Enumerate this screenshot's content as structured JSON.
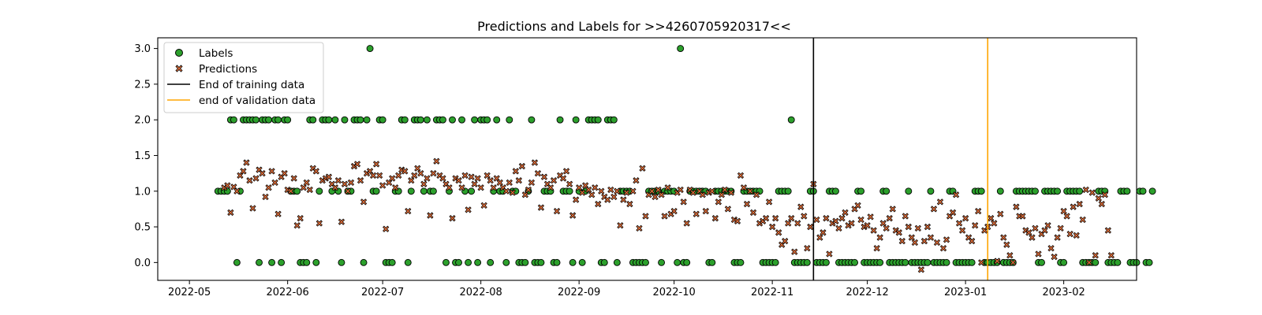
{
  "chart_data": {
    "type": "scatter",
    "title": "Predictions and Labels for >>4260705920317<<",
    "xlabel": "",
    "ylabel": "",
    "x_axis": {
      "type": "date",
      "range": [
        "2022-04-21",
        "2023-02-24"
      ],
      "ticks": [
        "2022-05-01",
        "2022-06-01",
        "2022-07-01",
        "2022-08-01",
        "2022-09-01",
        "2022-10-01",
        "2022-11-01",
        "2022-12-01",
        "2023-01-01",
        "2023-02-01"
      ],
      "tick_labels": [
        "2022-05",
        "2022-06",
        "2022-07",
        "2022-08",
        "2022-09",
        "2022-10",
        "2022-11",
        "2022-12",
        "2023-01",
        "2023-02"
      ]
    },
    "y_axis": {
      "range": [
        -0.25,
        3.15
      ],
      "ticks": [
        0.0,
        0.5,
        1.0,
        1.5,
        2.0,
        2.5,
        3.0
      ],
      "tick_labels": [
        "0.0",
        "0.5",
        "1.0",
        "1.5",
        "2.0",
        "2.5",
        "3.0"
      ]
    },
    "grid": false,
    "legend": {
      "placement": "top-left",
      "entries": [
        "Labels",
        "Predictions",
        "End of training data",
        "end of validation data"
      ]
    },
    "colors": {
      "labels": "#2ca02c",
      "predictions": "#e6703a",
      "training_line": "#000000",
      "validation_line": "#ffa500"
    },
    "vertical_lines": [
      {
        "name": "End of training data",
        "x": "2022-11-14",
        "color": "#000000"
      },
      {
        "name": "end of validation data",
        "x": "2023-01-08",
        "color": "#ffa500"
      }
    ],
    "series": [
      {
        "name": "Labels",
        "marker": "circle",
        "start_date": "2022-05-10",
        "step_days": 1,
        "values": [
          1,
          1,
          1,
          1,
          2,
          2,
          0,
          1,
          2,
          2,
          2,
          2,
          2,
          0,
          2,
          2,
          2,
          0,
          2,
          2,
          0,
          2,
          2,
          1,
          1,
          1,
          0,
          0,
          0,
          2,
          2,
          0,
          1,
          2,
          2,
          2,
          1,
          2,
          1,
          0,
          2,
          1,
          1,
          2,
          2,
          2,
          0,
          2,
          3,
          1,
          1,
          2,
          2,
          0,
          0,
          0,
          1,
          1,
          2,
          2,
          0,
          1,
          2,
          2,
          2,
          1,
          2,
          1,
          1,
          2,
          2,
          2,
          0,
          1,
          2,
          0,
          0,
          2,
          1,
          0,
          1,
          2,
          0,
          2,
          2,
          2,
          0,
          1,
          2,
          1,
          1,
          0,
          2,
          1,
          1,
          0,
          0,
          0,
          1,
          2,
          0,
          0,
          0,
          1,
          1,
          1,
          0,
          0,
          2,
          1,
          1,
          1,
          0,
          2,
          1,
          0,
          1,
          2,
          2,
          2,
          2,
          0,
          0,
          2,
          2,
          2,
          0,
          1,
          1,
          1,
          1,
          0,
          0,
          0,
          0,
          0,
          1,
          1,
          1,
          1,
          0,
          1,
          1,
          1,
          1,
          0,
          3,
          0,
          0,
          1,
          1,
          1,
          1,
          1,
          1,
          0,
          0,
          1,
          1,
          1,
          1,
          1,
          1,
          0,
          0,
          0,
          1,
          1,
          1,
          1,
          1,
          1,
          0,
          0,
          0,
          0,
          0,
          1,
          1,
          1,
          1,
          2,
          0,
          0,
          0,
          0,
          0,
          1,
          1,
          0,
          0,
          0,
          0,
          1,
          1,
          1,
          0,
          0,
          0,
          0,
          0,
          0,
          1,
          1,
          0,
          0,
          0,
          0,
          0,
          0,
          1,
          1,
          0,
          0,
          0,
          0,
          0,
          0,
          1,
          0,
          0,
          0,
          0,
          0,
          0,
          1,
          0,
          0,
          0,
          0,
          0,
          1,
          1,
          0,
          0,
          0,
          0,
          0,
          0,
          1,
          1,
          1,
          0,
          0,
          0,
          0,
          0,
          1,
          0,
          0,
          0,
          0,
          1,
          1,
          1,
          1,
          1,
          1,
          1,
          0,
          0,
          1,
          1,
          1,
          1,
          1,
          0,
          0,
          1,
          1,
          1,
          1,
          1,
          0,
          0,
          0,
          0,
          0,
          1,
          1,
          1,
          0,
          0,
          0,
          0,
          1,
          1,
          1,
          0,
          0,
          0,
          1,
          1,
          0,
          0,
          1
        ]
      },
      {
        "name": "Predictions",
        "marker": "x",
        "start_date": "2022-05-12",
        "step_days": 1,
        "values": [
          1.05,
          1.08,
          0.7,
          1.06,
          1.0,
          1.22,
          1.28,
          1.4,
          1.15,
          0.76,
          1.18,
          1.3,
          1.25,
          0.92,
          1.05,
          1.28,
          1.12,
          0.68,
          1.2,
          1.25,
          1.02,
          1.0,
          1.18,
          0.52,
          0.62,
          1.05,
          1.12,
          1.02,
          1.32,
          1.28,
          0.55,
          1.15,
          1.18,
          1.2,
          1.1,
          1.05,
          1.15,
          0.57,
          1.1,
          1.0,
          1.12,
          1.35,
          1.38,
          1.15,
          0.85,
          1.25,
          1.28,
          1.22,
          1.38,
          1.22,
          1.08,
          0.47,
          1.12,
          1.18,
          1.05,
          1.22,
          1.3,
          1.28,
          0.72,
          1.15,
          1.22,
          1.32,
          1.25,
          1.1,
          1.18,
          0.66,
          1.25,
          1.42,
          1.22,
          1.18,
          1.1,
          1.05,
          0.62,
          1.18,
          1.15,
          1.05,
          1.22,
          0.74,
          1.2,
          1.1,
          1.18,
          1.05,
          0.8,
          1.22,
          1.15,
          1.05,
          1.18,
          1.12,
          1.05,
          1.0,
          1.12,
          0.98,
          1.28,
          1.15,
          1.35,
          0.95,
          1.02,
          1.12,
          1.4,
          1.25,
          0.77,
          1.2,
          1.1,
          1.05,
          1.15,
          0.72,
          1.22,
          1.18,
          1.28,
          1.1,
          0.66,
          0.88,
          1.05,
          0.98,
          1.08,
          1.02,
          0.95,
          1.05,
          0.82,
          1.0,
          0.92,
          0.88,
          1.02,
          0.92,
          1.0,
          0.52,
          0.88,
          0.98,
          0.82,
          1.0,
          1.15,
          0.48,
          1.32,
          0.65,
          0.95,
          1.0,
          0.92,
          1.02,
          0.95,
          0.65,
          1.05,
          0.68,
          0.72,
          0.98,
          1.02,
          0.85,
          0.55,
          1.02,
          0.98,
          0.68,
          1.0,
          0.95,
          0.72,
          0.98,
          1.0,
          0.62,
          0.85,
          0.95,
          1.02,
          0.75,
          0.98,
          0.6,
          0.58,
          1.22,
          1.05,
          0.82,
          1.0,
          0.7,
          0.95,
          0.55,
          0.58,
          0.62,
          0.85,
          0.5,
          0.62,
          0.42,
          0.25,
          0.3,
          0.55,
          0.62,
          0.15,
          0.55,
          0.78,
          0.65,
          0.2,
          0.5,
          1.1,
          0.6,
          0.35,
          0.42,
          0.62,
          0.12,
          0.55,
          0.58,
          0.48,
          0.62,
          0.7,
          0.52,
          0.55,
          0.75,
          0.8,
          0.6,
          0.5,
          0.52,
          0.64,
          0.45,
          0.2,
          0.35,
          0.55,
          0.48,
          0.62,
          0.75,
          0.45,
          0.42,
          0.3,
          0.65,
          0.5,
          0.35,
          0.28,
          0.48,
          -0.1,
          0.3,
          0.5,
          0.35,
          0.75,
          0.28,
          0.85,
          0.2,
          0.32,
          0.65,
          0.7,
          0.95,
          0.55,
          0.45,
          0.62,
          0.35,
          0.3,
          0.52,
          0.72,
          0.0,
          0.45,
          0.5,
          0.62,
          0.55,
          0.02,
          0.68,
          0.35,
          0.25,
          0.1,
          0.0,
          0.78,
          0.65,
          0.65,
          0.45,
          0.42,
          0.35,
          0.48,
          0.12,
          0.4,
          0.45,
          0.52,
          0.2,
          0.08,
          0.35,
          0.48,
          0.72,
          0.65,
          0.4,
          0.78,
          0.38,
          0.82,
          0.6,
          1.02,
          0.0,
          0.98,
          0.1,
          0.9,
          0.82,
          0.95,
          0.45,
          0.1
        ]
      }
    ]
  }
}
